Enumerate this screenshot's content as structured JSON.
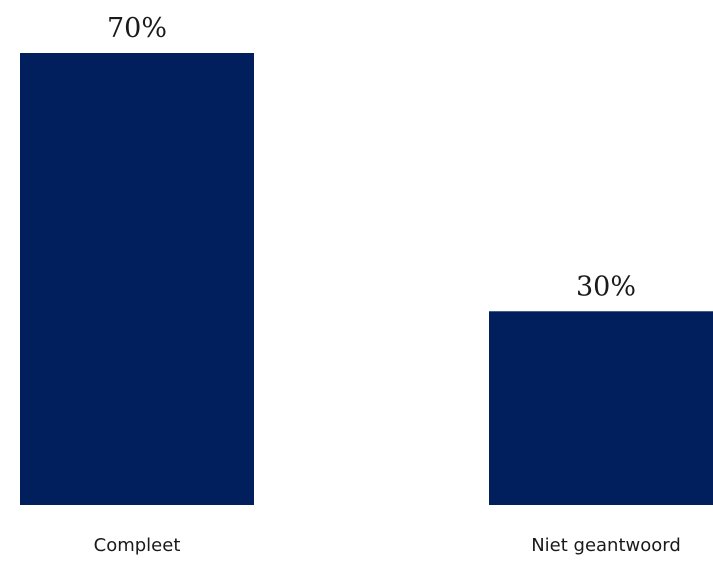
{
  "chart_data": {
    "type": "bar",
    "categories": [
      "Compleet",
      "Niet geantwoord"
    ],
    "values": [
      70,
      30
    ],
    "value_labels": [
      "70%",
      "30%"
    ],
    "bar_color": "#001f5c",
    "ylim": [
      0,
      70
    ],
    "grid": false,
    "legend": false
  }
}
